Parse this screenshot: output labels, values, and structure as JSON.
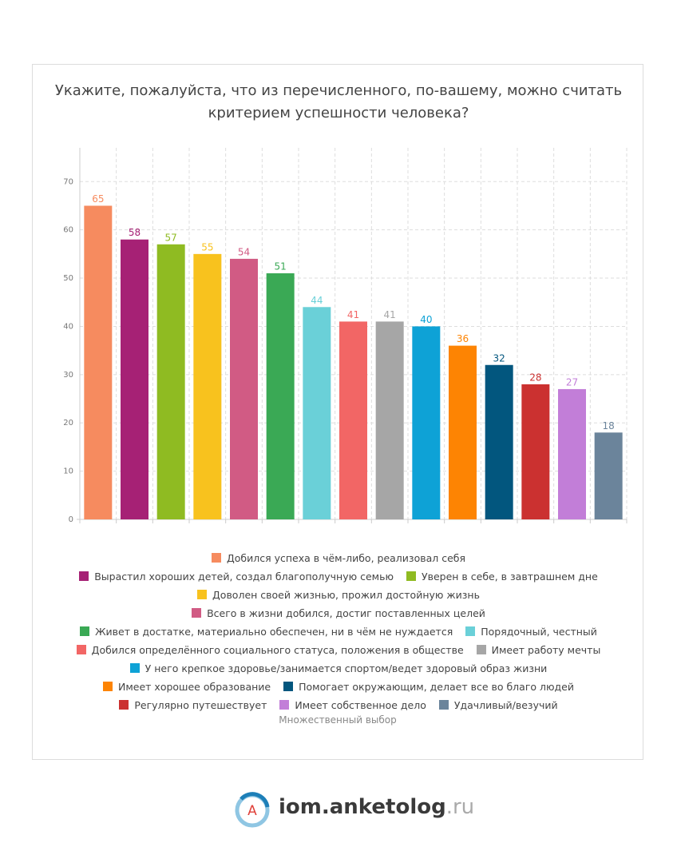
{
  "chart_data": {
    "type": "bar",
    "title": "Укажите, пожалуйста, что из перечисленного, по-вашему, можно считать критерием успешности человека?",
    "categories": [
      "Добился успеха в чём-либо, реализовал себя",
      "Вырастил хороших детей, создал благополучную семью",
      "Уверен в себе, в завтрашнем дне",
      "Доволен своей жизнью, прожил достойную жизнь",
      "Всего в жизни добился, достиг поставленных целей",
      "Живет в достатке, материально обеспечен, ни в чём не нуждается",
      "Порядочный, честный",
      "Добился определённого социального статуса, положения в обществе",
      "Имеет работу мечты",
      "У него крепкое здоровье/занимается спортом/ведет здоровый образ жизни",
      "Имеет хорошее образование",
      "Помогает окружающим, делает все во благо людей",
      "Регулярно путешествует",
      "Имеет собственное дело",
      "Удачливый/везучий"
    ],
    "values": [
      65,
      58,
      57,
      55,
      54,
      51,
      44,
      41,
      41,
      40,
      36,
      32,
      28,
      27,
      18
    ],
    "colors": [
      "#f68b5f",
      "#a62175",
      "#8fbb22",
      "#f8c21e",
      "#d15b84",
      "#3aa955",
      "#6ad0d8",
      "#f26665",
      "#a6a6a6",
      "#0ea2d6",
      "#fd8403",
      "#02567e",
      "#cb3130",
      "#c27ed8",
      "#6b849b"
    ],
    "ylim": [
      0,
      77
    ],
    "yticks": [
      0,
      10,
      20,
      30,
      40,
      50,
      60,
      70
    ],
    "grid": true,
    "note": "Множественный выбор"
  },
  "logo": {
    "letter": "A",
    "name": "iom.anketolog",
    "suffix": ".ru"
  }
}
